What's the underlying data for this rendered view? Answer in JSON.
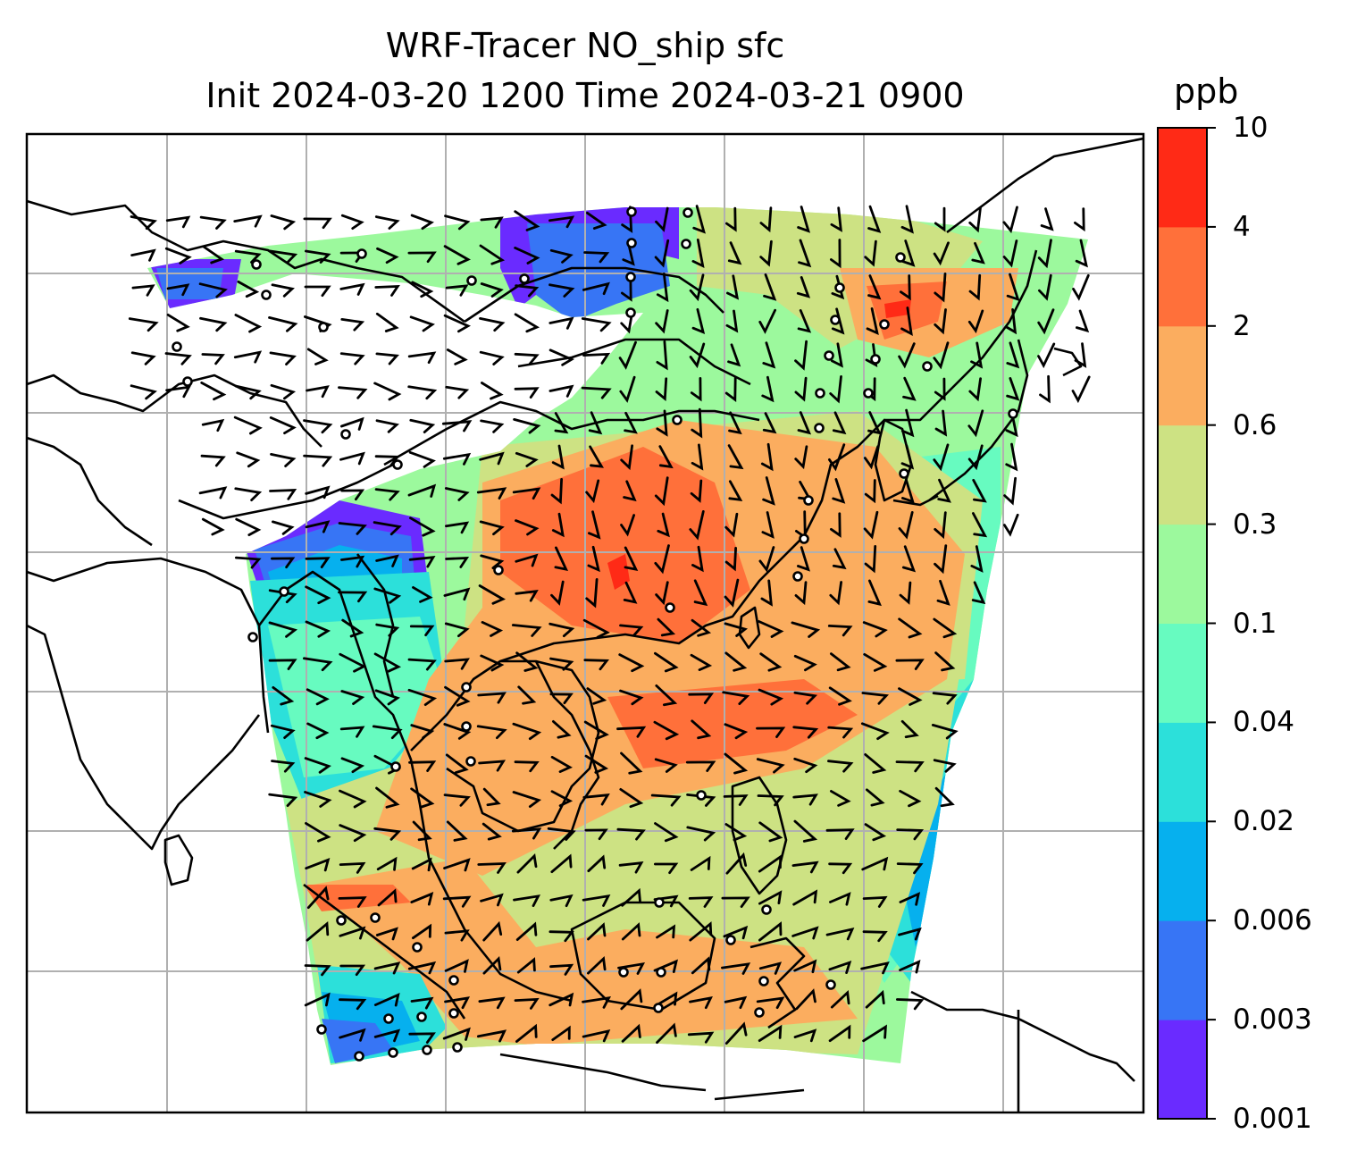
{
  "title": {
    "line1": "WRF-Tracer NO_ship sfc",
    "line2": "Init 2024-03-20 1200 Time 2024-03-21 0900"
  },
  "colorbar": {
    "unit": "ppb",
    "levels": [
      "0.001",
      "0.003",
      "0.006",
      "0.02",
      "0.04",
      "0.1",
      "0.3",
      "0.6",
      "2",
      "4",
      "10"
    ],
    "colors": [
      "#6a2bff",
      "#3775f5",
      "#06b0ee",
      "#2ce0da",
      "#67fbc0",
      "#9cf99d",
      "#cde283",
      "#fbad5f",
      "#ff703a",
      "#ff2a16"
    ]
  },
  "map": {
    "fill_colors": {
      "violet": "#6a2bff",
      "blue": "#3775f5",
      "sky": "#06b0ee",
      "cyan": "#2ce0da",
      "aqua": "#67fbc0",
      "lightgreen": "#9cf99d",
      "olive": "#cde283",
      "orange": "#fbad5f",
      "darkorange": "#ff703a",
      "red": "#ff2a16"
    },
    "gridline_color": "#b0b0b0",
    "coastline_color": "#000000",
    "wind_barbs": "black",
    "calm_markers": "open-circle"
  }
}
